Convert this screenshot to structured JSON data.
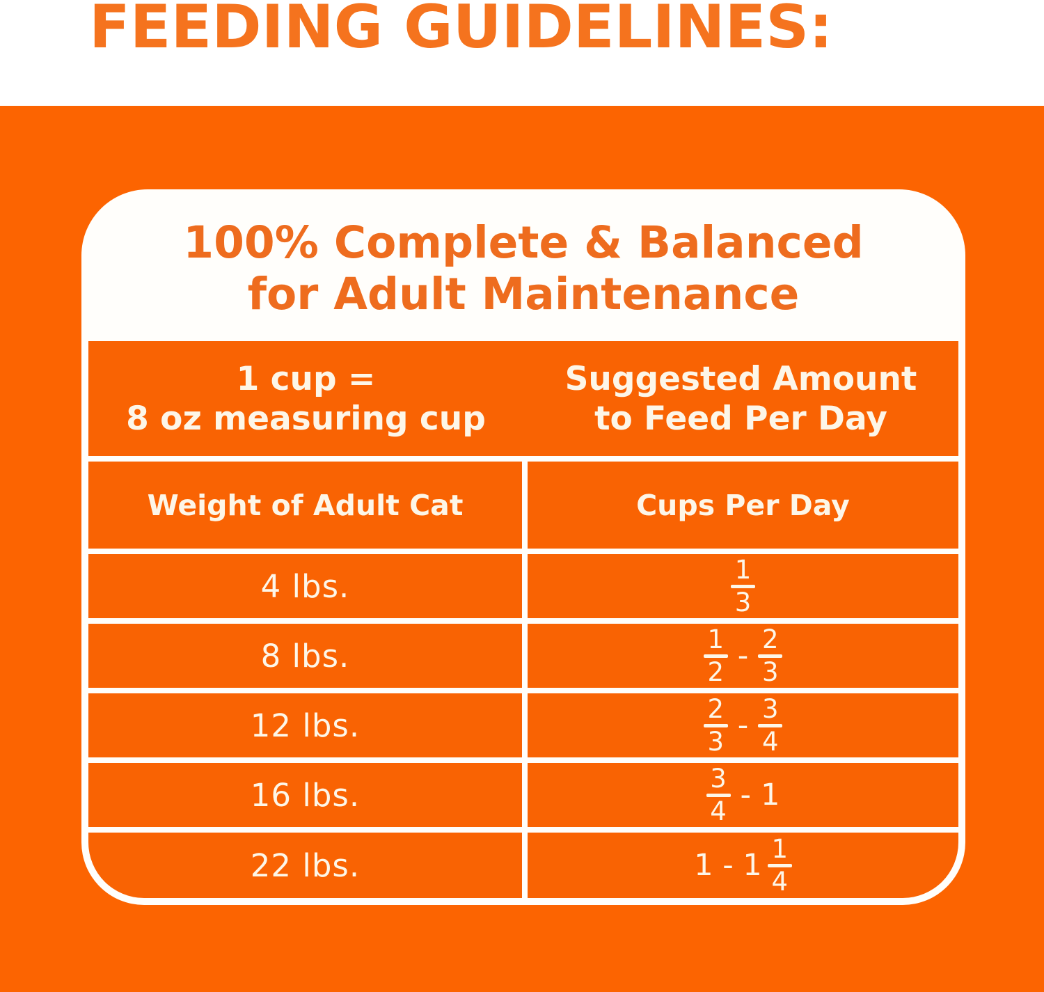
{
  "page": {
    "heading": "FEEDING GUIDELINES:"
  },
  "card": {
    "title_line1": "100% Complete & Balanced",
    "title_line2": "for Adult Maintenance"
  },
  "table": {
    "header": {
      "left_line1": "1 cup =",
      "left_line2": "8 oz measuring cup",
      "right_line1": "Suggested Amount",
      "right_line2": "to Feed Per Day"
    },
    "columns": [
      "Weight of Adult Cat",
      "Cups Per Day"
    ],
    "rows": [
      {
        "weight": "4 lbs.",
        "cups": [
          {
            "type": "frac",
            "num": "1",
            "den": "3"
          }
        ],
        "cups_text": "1/3"
      },
      {
        "weight": "8 lbs.",
        "cups": [
          {
            "type": "frac",
            "num": "1",
            "den": "2"
          },
          {
            "type": "text",
            "value": "-"
          },
          {
            "type": "frac",
            "num": "2",
            "den": "3"
          }
        ],
        "cups_text": "1/2 - 2/3"
      },
      {
        "weight": "12 lbs.",
        "cups": [
          {
            "type": "frac",
            "num": "2",
            "den": "3"
          },
          {
            "type": "text",
            "value": "-"
          },
          {
            "type": "frac",
            "num": "3",
            "den": "4"
          }
        ],
        "cups_text": "2/3 - 3/4"
      },
      {
        "weight": "16 lbs.",
        "cups": [
          {
            "type": "frac",
            "num": "3",
            "den": "4"
          },
          {
            "type": "text",
            "value": "-"
          },
          {
            "type": "text",
            "value": "1"
          }
        ],
        "cups_text": "3/4 - 1"
      },
      {
        "weight": "22 lbs.",
        "cups": [
          {
            "type": "text",
            "value": "1 - 1"
          },
          {
            "type": "frac",
            "num": "1",
            "den": "4"
          }
        ],
        "cups_text": "1 - 1 1/4"
      }
    ]
  },
  "colors": {
    "page_background": "#FFFFFF",
    "orange_background": "#FC6401",
    "table_orange": "#F96303",
    "heading_orange": "#F5731E",
    "title_orange": "#EE6C1E",
    "table_text_cream": "#FDF6E8",
    "card_background": "#FFFEFB"
  }
}
